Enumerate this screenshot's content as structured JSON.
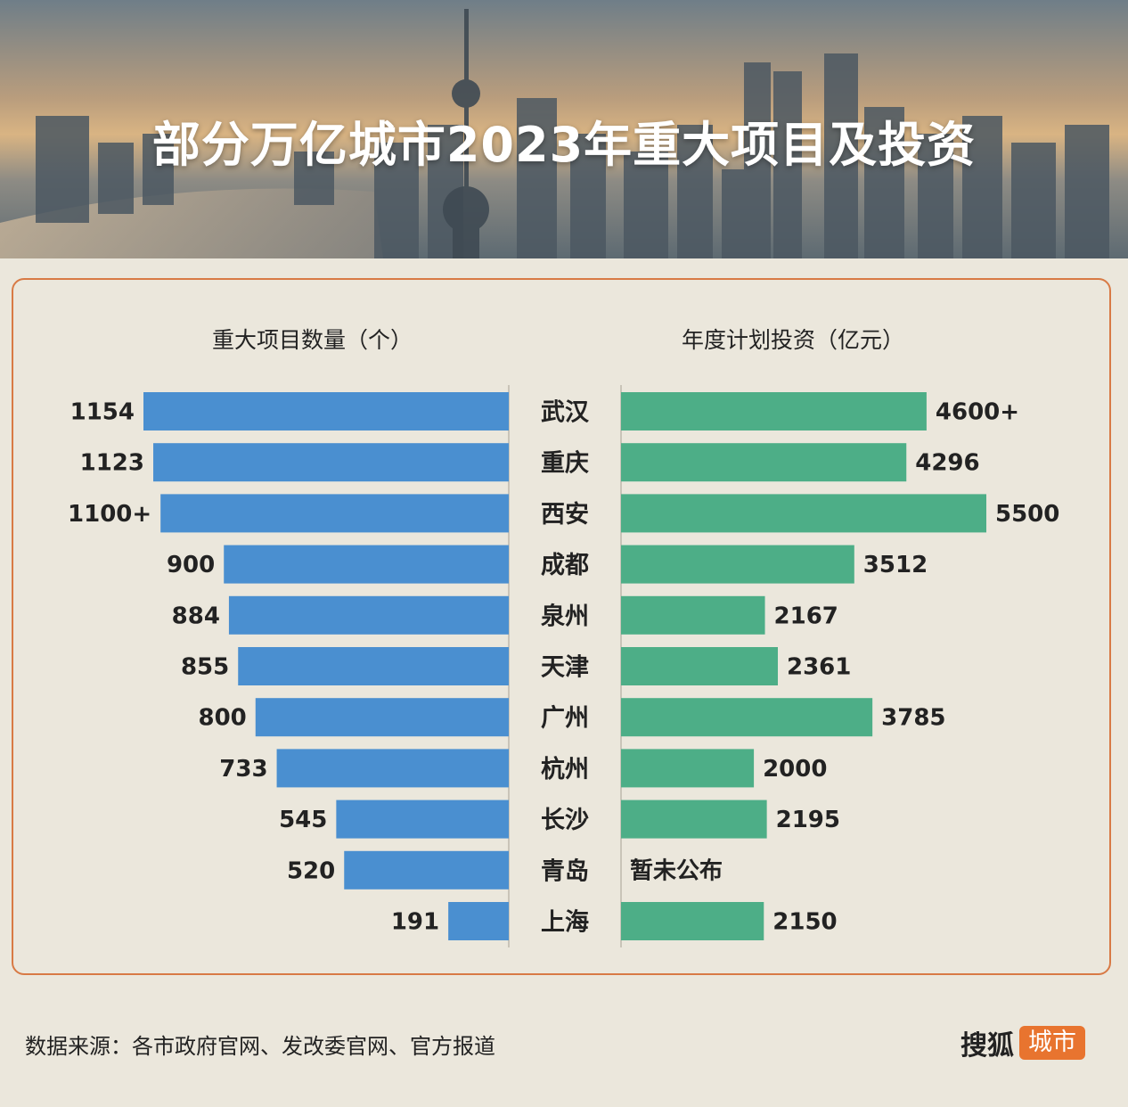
{
  "title": "部分万亿城市2023年重大项目及投资",
  "left_header": "重大项目数量（个）",
  "right_header": "年度计划投资（亿元）",
  "source": "数据来源：各市政府官网、发改委官网、官方报道",
  "brand": {
    "name": "搜狐",
    "badge": "城市"
  },
  "colors": {
    "left_bar": "#4a8fd0",
    "right_bar": "#4dae87",
    "border": "#d87a45",
    "background": "#ebe7dc"
  },
  "chart_data": {
    "type": "bar",
    "categories": [
      "武汉",
      "重庆",
      "西安",
      "成都",
      "泉州",
      "天津",
      "广州",
      "杭州",
      "长沙",
      "青岛",
      "上海"
    ],
    "series": [
      {
        "name": "重大项目数量（个）",
        "values": [
          1154,
          1123,
          1100,
          900,
          884,
          855,
          800,
          733,
          545,
          520,
          191
        ],
        "labels": [
          "1154",
          "1123",
          "1100+",
          "900",
          "884",
          "855",
          "800",
          "733",
          "545",
          "520",
          "191"
        ]
      },
      {
        "name": "年度计划投资（亿元）",
        "values": [
          4600,
          4296,
          5500,
          3512,
          2167,
          2361,
          3785,
          2000,
          2195,
          null,
          2150
        ],
        "labels": [
          "4600+",
          "4296",
          "5500",
          "3512",
          "2167",
          "2361",
          "3785",
          "2000",
          "2195",
          "暂未公布",
          "2150"
        ]
      }
    ]
  }
}
